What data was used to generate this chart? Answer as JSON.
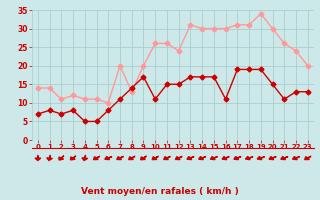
{
  "x": [
    0,
    1,
    2,
    3,
    4,
    5,
    6,
    7,
    8,
    9,
    10,
    11,
    12,
    13,
    14,
    15,
    16,
    17,
    18,
    19,
    20,
    21,
    22,
    23
  ],
  "wind_avg": [
    7,
    8,
    7,
    8,
    5,
    5,
    8,
    11,
    14,
    17,
    11,
    15,
    15,
    17,
    17,
    17,
    11,
    19,
    19,
    19,
    15,
    11,
    13,
    13
  ],
  "wind_gust": [
    14,
    14,
    11,
    12,
    11,
    11,
    10,
    20,
    13,
    20,
    26,
    26,
    24,
    31,
    30,
    30,
    30,
    31,
    31,
    34,
    30,
    26,
    24,
    20
  ],
  "bg_color": "#cde8e8",
  "grid_color": "#aacece",
  "avg_color": "#cc0000",
  "gust_color": "#ff9999",
  "xlabel": "Vent moyen/en rafales ( km/h )",
  "xlabel_color": "#cc0000",
  "tick_color": "#cc0000",
  "ylim": [
    0,
    35
  ],
  "yticks": [
    0,
    5,
    10,
    15,
    20,
    25,
    30,
    35
  ],
  "marker_size": 2.5,
  "linewidth": 1.0,
  "arrow_angles_deg": [
    270,
    260,
    235,
    230,
    260,
    220,
    210,
    215,
    220,
    225,
    220,
    215,
    215,
    210,
    210,
    210,
    210,
    210,
    205,
    205,
    210,
    210,
    210,
    220
  ]
}
